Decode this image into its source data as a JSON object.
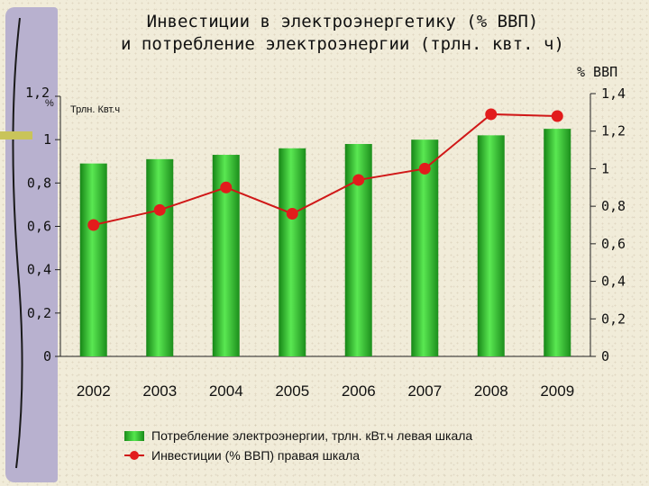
{
  "title": "Инвестиции  в электроэнергетику (% ВВП)\nи потребление электроэнергии (трлн. квт. ч)",
  "left_axis": {
    "unit_top": "1,2",
    "unit_mark": "%",
    "series_unit": "Трлн. Квт.ч"
  },
  "right_axis": {
    "unit": "% ВВП"
  },
  "legend": {
    "bars_label": "Потребление электроэнергии, трлн. кВт.ч левая шкала",
    "line_label": "Инвестиции (% ВВП) правая шкала"
  },
  "colors": {
    "bar": "#2fbf2a",
    "line": "#d01818",
    "marker": "#e21c1c"
  },
  "chart_data": {
    "type": "bar",
    "categories": [
      "2002",
      "2003",
      "2004",
      "2005",
      "2006",
      "2007",
      "2008",
      "2009"
    ],
    "series": [
      {
        "name": "Потребление электроэнергии, трлн. кВт.ч левая шкала",
        "axis": "left",
        "type": "bar",
        "values": [
          0.89,
          0.91,
          0.93,
          0.96,
          0.98,
          1.0,
          1.02,
          1.05
        ]
      },
      {
        "name": "Инвестиции (% ВВП) правая шкала",
        "axis": "right",
        "type": "line",
        "values": [
          0.7,
          0.78,
          0.9,
          0.76,
          0.94,
          1.0,
          1.29,
          1.28
        ]
      }
    ],
    "left_axis": {
      "ylim": [
        0,
        1.2
      ],
      "ticks": [
        "0",
        "0,2",
        "0,4",
        "0,6",
        "0,8",
        "1",
        "1,2"
      ]
    },
    "right_axis": {
      "ylim": [
        0,
        1.4
      ],
      "ticks": [
        "0",
        "0,2",
        "0,4",
        "0,6",
        "0,8",
        "1",
        "1,2",
        "1,4"
      ]
    },
    "grid": false,
    "legend_position": "bottom"
  }
}
